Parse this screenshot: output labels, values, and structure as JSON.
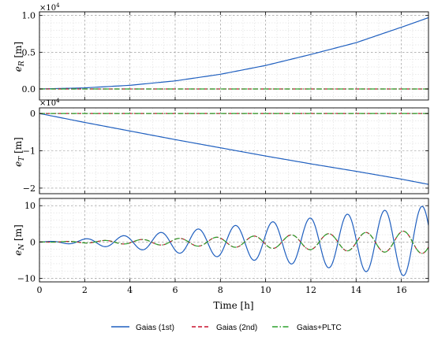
{
  "chart_data": [
    {
      "type": "line",
      "panel": "top",
      "ylabel_base": "e",
      "ylabel_sub": "R",
      "ylabel_unit": " [m]",
      "offset_base": "×10",
      "offset_exp": "4",
      "ylim": [
        -0.15,
        1.05
      ],
      "yticks": [
        0,
        0.5,
        1.0
      ],
      "ytick_labels": [
        "0.0",
        "0.5",
        "1.0"
      ],
      "series": [
        {
          "name": "Gaias (1st)",
          "x": [
            0,
            2,
            4,
            6,
            8,
            10,
            12,
            14,
            16,
            17.2
          ],
          "y": [
            0,
            0.015,
            0.05,
            0.11,
            0.2,
            0.32,
            0.47,
            0.63,
            0.84,
            0.97
          ]
        },
        {
          "name": "Gaias (2nd)",
          "x": [
            0,
            17.2
          ],
          "y": [
            0,
            0
          ]
        },
        {
          "name": "Gaias+PLTC",
          "x": [
            0,
            17.2
          ],
          "y": [
            0,
            0
          ]
        }
      ]
    },
    {
      "type": "line",
      "panel": "middle",
      "ylabel_base": "e",
      "ylabel_sub": "T",
      "ylabel_unit": " [m]",
      "offset_base": "×10",
      "offset_exp": "4",
      "ylim": [
        -2.15,
        0.15
      ],
      "yticks": [
        0,
        -1,
        -2
      ],
      "ytick_labels": [
        "0",
        "−1",
        "−2"
      ],
      "series": [
        {
          "name": "Gaias (1st)",
          "x": [
            0,
            2,
            4,
            6,
            8,
            10,
            12,
            14,
            16,
            17.2
          ],
          "y": [
            0,
            -0.24,
            -0.47,
            -0.7,
            -0.92,
            -1.14,
            -1.35,
            -1.55,
            -1.76,
            -1.9
          ]
        },
        {
          "name": "Gaias (2nd)",
          "x": [
            0,
            17.2
          ],
          "y": [
            0,
            0
          ]
        },
        {
          "name": "Gaias+PLTC",
          "x": [
            0,
            17.2
          ],
          "y": [
            0,
            0
          ]
        }
      ]
    },
    {
      "type": "line",
      "panel": "bottom",
      "ylabel_base": "e",
      "ylabel_sub": "N",
      "ylabel_unit": " [m]",
      "ylim": [
        -11,
        12
      ],
      "yticks": [
        -10,
        0,
        10
      ],
      "ytick_labels": [
        "−10",
        "0",
        "10"
      ],
      "oscillation": {
        "period_h": 1.65,
        "gaias_1st_amplitude_end": 10,
        "gaias_2nd_amplitude_end": 3.2,
        "phase_2nd_h": 0.82
      },
      "series": [
        {
          "name": "Gaias (1st)"
        },
        {
          "name": "Gaias (2nd)"
        },
        {
          "name": "Gaias+PLTC"
        }
      ]
    }
  ],
  "xaxis": {
    "label": "Time [h]",
    "xlim": [
      0,
      17.2
    ],
    "ticks": [
      0,
      2,
      4,
      6,
      8,
      10,
      12,
      14,
      16
    ],
    "tick_labels": [
      "0",
      "2",
      "4",
      "6",
      "8",
      "10",
      "12",
      "14",
      "16"
    ]
  },
  "legend": {
    "placement": "bottom-center",
    "entries": [
      {
        "label": "Gaias (1st)",
        "color": "#1f5fbf",
        "style": "solid"
      },
      {
        "label": "Gaias (2nd)",
        "color": "#c8102e",
        "style": "dashed"
      },
      {
        "label": "Gaias+PLTC",
        "color": "#2ca02c",
        "style": "dashdot"
      }
    ]
  },
  "colors": {
    "gaias_1st": "#1f5fbf",
    "gaias_2nd": "#c8102e",
    "gaias_pltc": "#2ca02c"
  }
}
